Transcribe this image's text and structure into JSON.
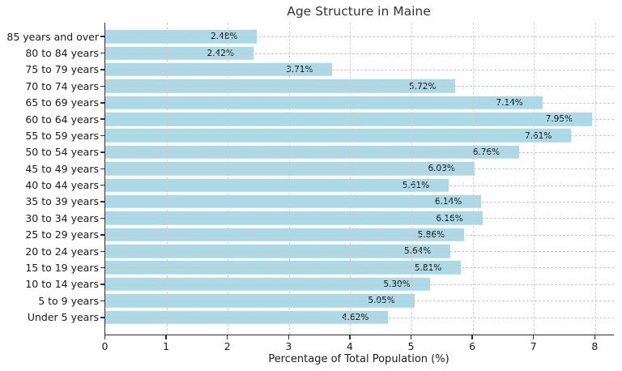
{
  "chart_data": {
    "type": "bar",
    "orientation": "horizontal",
    "title": "Age Structure in Maine",
    "xlabel": "Percentage of Total Population (%)",
    "categories": [
      "85 years and over",
      "80 to 84 years",
      "75 to 79 years",
      "70 to 74 years",
      "65 to 69 years",
      "60 to 64 years",
      "55 to 59 years",
      "50 to 54 years",
      "45 to 49 years",
      "40 to 44 years",
      "35 to 39 years",
      "30 to 34 years",
      "25 to 29 years",
      "20 to 24 years",
      "15 to 19 years",
      "10 to 14 years",
      "5 to 9 years",
      "Under 5 years"
    ],
    "values": [
      2.48,
      2.42,
      3.71,
      5.72,
      7.14,
      7.95,
      7.61,
      6.76,
      6.03,
      5.61,
      6.14,
      6.16,
      5.86,
      5.64,
      5.81,
      5.3,
      5.05,
      4.62
    ],
    "value_labels": [
      "2.48%",
      "2.42%",
      "3.71%",
      "5.72%",
      "7.14%",
      "7.95%",
      "7.61%",
      "6.76%",
      "6.03%",
      "5.61%",
      "6.14%",
      "6.16%",
      "5.86%",
      "5.64%",
      "5.81%",
      "5.30%",
      "5.05%",
      "4.62%"
    ],
    "x_ticks": [
      "0",
      "1",
      "2",
      "3",
      "4",
      "5",
      "6",
      "7",
      "8"
    ],
    "xlim": [
      0,
      8.3
    ],
    "grid": true,
    "legend": null,
    "colors": {
      "bar": "#ADD8E6",
      "grid": "#cccccc",
      "axis": "#2f2f2f",
      "text": "#1a1a1a",
      "title": "#343434"
    }
  }
}
